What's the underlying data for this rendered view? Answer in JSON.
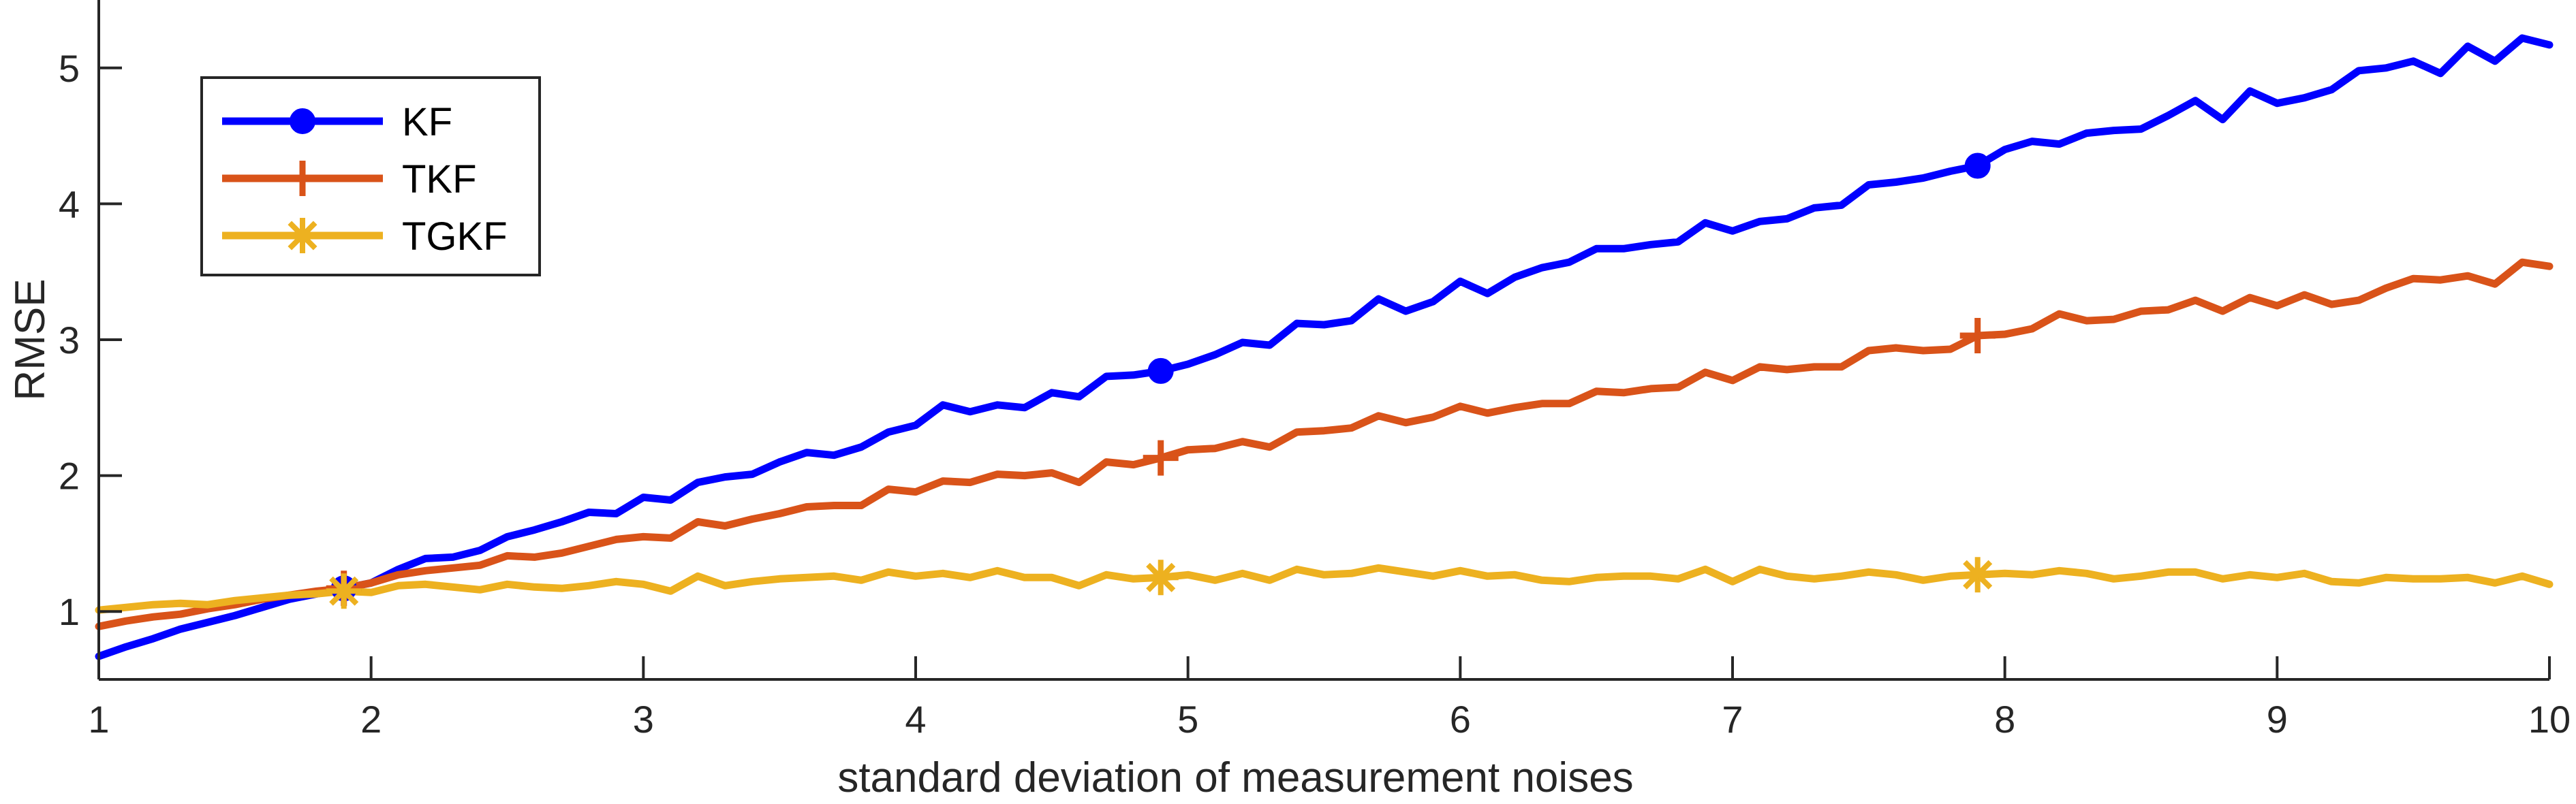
{
  "chart_data": {
    "type": "line",
    "title": "",
    "xlabel": "standard deviation of measurement noises",
    "ylabel": "RMSE",
    "xlim": [
      1,
      10
    ],
    "ylim": [
      0.5,
      5.5
    ],
    "xticks": [
      1,
      2,
      3,
      4,
      5,
      6,
      7,
      8,
      9,
      10
    ],
    "yticks": [
      1,
      2,
      3,
      4,
      5
    ],
    "grid": false,
    "legend_position": "top-left",
    "x": [
      1.0,
      1.1,
      1.2,
      1.3,
      1.4,
      1.5,
      1.6,
      1.7,
      1.8,
      1.9,
      2.0,
      2.1,
      2.2,
      2.3,
      2.4,
      2.5,
      2.6,
      2.7,
      2.8,
      2.9,
      3.0,
      3.1,
      3.2,
      3.3,
      3.4,
      3.5,
      3.6,
      3.7,
      3.8,
      3.9,
      4.0,
      4.1,
      4.2,
      4.3,
      4.4,
      4.5,
      4.6,
      4.7,
      4.8,
      4.9,
      5.0,
      5.1,
      5.2,
      5.3,
      5.4,
      5.5,
      5.6,
      5.7,
      5.8,
      5.9,
      6.0,
      6.1,
      6.2,
      6.3,
      6.4,
      6.5,
      6.6,
      6.7,
      6.8,
      6.9,
      7.0,
      7.1,
      7.2,
      7.3,
      7.4,
      7.5,
      7.6,
      7.7,
      7.8,
      7.9,
      8.0,
      8.1,
      8.2,
      8.3,
      8.4,
      8.5,
      8.6,
      8.7,
      8.8,
      8.9,
      9.0,
      9.1,
      9.2,
      9.3,
      9.4,
      9.5,
      9.6,
      9.7,
      9.8,
      9.9,
      10.0
    ],
    "series": [
      {
        "name": "KF",
        "color": "#0000FF",
        "marker": "circle",
        "marker_x": [
          1.9,
          4.9,
          7.9
        ],
        "values": [
          0.67,
          0.74,
          0.8,
          0.87,
          0.92,
          0.97,
          1.03,
          1.09,
          1.13,
          1.17,
          1.21,
          1.31,
          1.39,
          1.4,
          1.45,
          1.55,
          1.6,
          1.66,
          1.73,
          1.72,
          1.84,
          1.82,
          1.95,
          1.99,
          2.01,
          2.1,
          2.17,
          2.15,
          2.21,
          2.32,
          2.37,
          2.52,
          2.47,
          2.52,
          2.5,
          2.61,
          2.58,
          2.73,
          2.74,
          2.77,
          2.82,
          2.89,
          2.98,
          2.96,
          3.12,
          3.11,
          3.14,
          3.3,
          3.21,
          3.28,
          3.43,
          3.34,
          3.46,
          3.53,
          3.57,
          3.67,
          3.67,
          3.7,
          3.72,
          3.86,
          3.8,
          3.87,
          3.89,
          3.97,
          3.99,
          4.14,
          4.16,
          4.19,
          4.24,
          4.28,
          4.4,
          4.46,
          4.44,
          4.52,
          4.54,
          4.55,
          4.65,
          4.76,
          4.62,
          4.83,
          4.74,
          4.78,
          4.84,
          4.98,
          5.0,
          5.05,
          4.96,
          5.16,
          5.05,
          5.22,
          5.17
        ]
      },
      {
        "name": "TKF",
        "color": "#D95319",
        "marker": "plus",
        "marker_x": [
          1.9,
          4.9,
          7.9
        ],
        "values": [
          0.89,
          0.93,
          0.96,
          0.98,
          1.02,
          1.05,
          1.09,
          1.12,
          1.15,
          1.17,
          1.21,
          1.27,
          1.3,
          1.32,
          1.34,
          1.41,
          1.4,
          1.43,
          1.48,
          1.53,
          1.55,
          1.54,
          1.66,
          1.63,
          1.68,
          1.72,
          1.77,
          1.78,
          1.78,
          1.9,
          1.88,
          1.96,
          1.95,
          2.01,
          2.0,
          2.02,
          1.95,
          2.1,
          2.08,
          2.13,
          2.19,
          2.2,
          2.25,
          2.21,
          2.32,
          2.33,
          2.35,
          2.44,
          2.39,
          2.43,
          2.51,
          2.46,
          2.5,
          2.53,
          2.53,
          2.62,
          2.61,
          2.64,
          2.65,
          2.76,
          2.7,
          2.8,
          2.78,
          2.8,
          2.8,
          2.92,
          2.94,
          2.92,
          2.93,
          3.03,
          3.04,
          3.08,
          3.19,
          3.14,
          3.15,
          3.21,
          3.22,
          3.29,
          3.21,
          3.31,
          3.25,
          3.33,
          3.26,
          3.29,
          3.38,
          3.45,
          3.44,
          3.47,
          3.41,
          3.57,
          3.54
        ]
      },
      {
        "name": "TGKF",
        "color": "#EDB120",
        "marker": "asterisk",
        "marker_x": [
          1.9,
          4.9,
          7.9
        ],
        "values": [
          1.01,
          1.03,
          1.05,
          1.06,
          1.05,
          1.08,
          1.1,
          1.12,
          1.13,
          1.15,
          1.14,
          1.19,
          1.2,
          1.18,
          1.16,
          1.2,
          1.18,
          1.17,
          1.19,
          1.22,
          1.2,
          1.15,
          1.26,
          1.19,
          1.22,
          1.24,
          1.25,
          1.26,
          1.23,
          1.29,
          1.26,
          1.28,
          1.25,
          1.3,
          1.25,
          1.25,
          1.19,
          1.27,
          1.24,
          1.25,
          1.27,
          1.23,
          1.28,
          1.23,
          1.31,
          1.27,
          1.28,
          1.32,
          1.29,
          1.26,
          1.3,
          1.26,
          1.27,
          1.23,
          1.22,
          1.25,
          1.26,
          1.26,
          1.24,
          1.31,
          1.22,
          1.31,
          1.26,
          1.24,
          1.26,
          1.29,
          1.27,
          1.23,
          1.26,
          1.27,
          1.28,
          1.27,
          1.3,
          1.28,
          1.24,
          1.26,
          1.29,
          1.29,
          1.24,
          1.27,
          1.25,
          1.28,
          1.22,
          1.21,
          1.25,
          1.24,
          1.24,
          1.25,
          1.21,
          1.26,
          1.2
        ]
      }
    ]
  }
}
